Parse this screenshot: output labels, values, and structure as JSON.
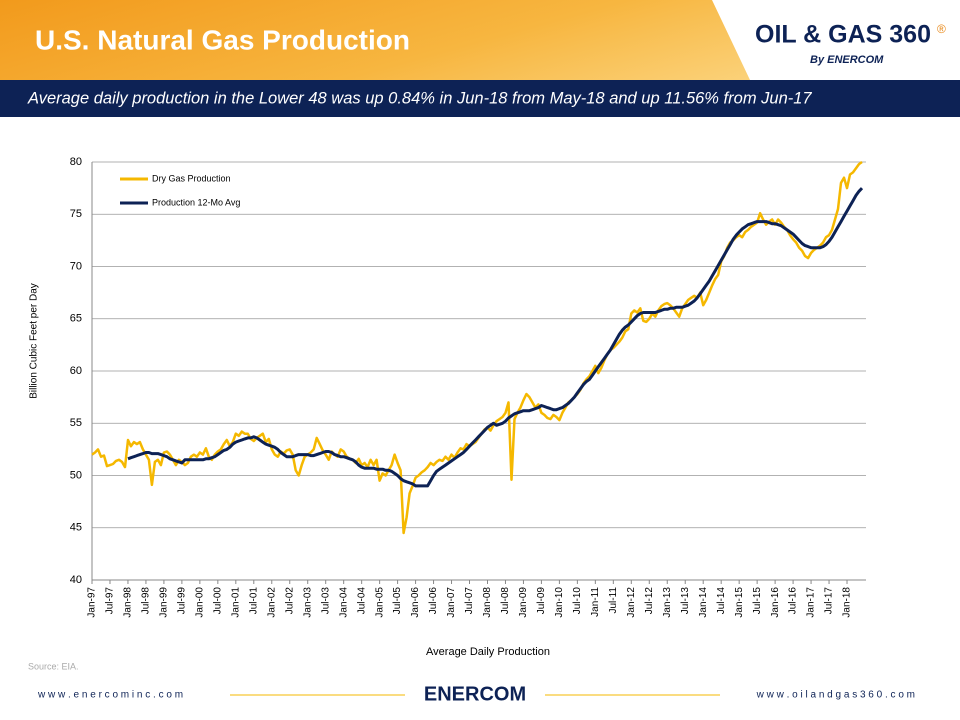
{
  "header": {
    "title": "U.S. Natural Gas Production",
    "logo": "OIL & GAS 360",
    "logo_mark": "®",
    "logo_sub": "By ENERCOM",
    "subtitle": "Average daily production in the Lower 48 was up 0.84% in Jun-18 from May-18 and up 11.56% from Jun-17"
  },
  "chart_data": {
    "type": "line",
    "ylabel": "Billion Cubic Feet per Day",
    "xlabel": "Average Daily Production",
    "ylim": [
      40,
      80
    ],
    "yticks": [
      40,
      45,
      50,
      55,
      60,
      65,
      70,
      75,
      80
    ],
    "grid": true,
    "legend": "upper left",
    "categories": [
      "Jan-97",
      null,
      null,
      null,
      null,
      null,
      "Jul-97",
      null,
      null,
      null,
      null,
      null,
      "Jan-98",
      null,
      null,
      null,
      null,
      null,
      "Jul-98",
      null,
      null,
      null,
      null,
      null,
      "Jan-99",
      null,
      null,
      null,
      null,
      null,
      "Jul-99",
      null,
      null,
      null,
      null,
      null,
      "Jan-00",
      null,
      null,
      null,
      null,
      null,
      "Jul-00",
      null,
      null,
      null,
      null,
      null,
      "Jan-01",
      null,
      null,
      null,
      null,
      null,
      "Jul-01",
      null,
      null,
      null,
      null,
      null,
      "Jan-02",
      null,
      null,
      null,
      null,
      null,
      "Jul-02",
      null,
      null,
      null,
      null,
      null,
      "Jan-03",
      null,
      null,
      null,
      null,
      null,
      "Jul-03",
      null,
      null,
      null,
      null,
      null,
      "Jan-04",
      null,
      null,
      null,
      null,
      null,
      "Jul-04",
      null,
      null,
      null,
      null,
      null,
      "Jan-05",
      null,
      null,
      null,
      null,
      null,
      "Jul-05",
      null,
      null,
      null,
      null,
      null,
      "Jan-06",
      null,
      null,
      null,
      null,
      null,
      "Jul-06",
      null,
      null,
      null,
      null,
      null,
      "Jan-07",
      null,
      null,
      null,
      null,
      null,
      "Jul-07",
      null,
      null,
      null,
      null,
      null,
      "Jan-08",
      null,
      null,
      null,
      null,
      null,
      "Jul-08",
      null,
      null,
      null,
      null,
      null,
      "Jan-09",
      null,
      null,
      null,
      null,
      null,
      "Jul-09",
      null,
      null,
      null,
      null,
      null,
      "Jan-10",
      null,
      null,
      null,
      null,
      null,
      "Jul-10",
      null,
      null,
      null,
      null,
      null,
      "Jan-11",
      null,
      null,
      null,
      null,
      null,
      "Jul-11",
      null,
      null,
      null,
      null,
      null,
      "Jan-12",
      null,
      null,
      null,
      null,
      null,
      "Jul-12",
      null,
      null,
      null,
      null,
      null,
      "Jan-13",
      null,
      null,
      null,
      null,
      null,
      "Jul-13",
      null,
      null,
      null,
      null,
      null,
      "Jan-14",
      null,
      null,
      null,
      null,
      null,
      "Jul-14",
      null,
      null,
      null,
      null,
      null,
      "Jan-15",
      null,
      null,
      null,
      null,
      null,
      "Jul-15",
      null,
      null,
      null,
      null,
      null,
      "Jan-16",
      null,
      null,
      null,
      null,
      null,
      "Jul-16",
      null,
      null,
      null,
      null,
      null,
      "Jan-17",
      null,
      null,
      null,
      null,
      null,
      "Jul-17",
      null,
      null,
      null,
      null,
      null,
      "Jan-18",
      null,
      null,
      null,
      null,
      null
    ],
    "series": [
      {
        "name": "Dry Gas Production",
        "color": "#f5b800",
        "values": [
          52.0,
          52.2,
          52.5,
          51.8,
          51.9,
          50.9,
          51.0,
          51.1,
          51.4,
          51.5,
          51.3,
          50.8,
          53.4,
          52.8,
          53.2,
          53.0,
          53.2,
          52.5,
          52.0,
          51.5,
          49.1,
          51.3,
          51.5,
          51.0,
          52.2,
          52.3,
          52.0,
          51.5,
          51.0,
          51.5,
          51.3,
          51.0,
          51.2,
          51.8,
          52.0,
          51.8,
          52.2,
          52.0,
          52.6,
          51.8,
          51.5,
          52.0,
          52.3,
          52.5,
          53.0,
          53.4,
          52.8,
          53.2,
          54.0,
          53.8,
          54.2,
          54.0,
          54.0,
          53.5,
          53.3,
          53.6,
          53.8,
          54.0,
          53.2,
          53.5,
          52.5,
          52.0,
          51.8,
          52.3,
          52.1,
          52.4,
          52.5,
          52.0,
          50.5,
          50.0,
          51.0,
          51.8,
          52.0,
          52.2,
          52.5,
          53.6,
          53.0,
          52.4,
          52.0,
          51.5,
          52.3,
          52.0,
          51.8,
          52.5,
          52.3,
          51.8,
          51.6,
          51.5,
          51.2,
          51.6,
          51.0,
          51.2,
          50.8,
          51.5,
          51.0,
          51.5,
          49.5,
          50.2,
          50.0,
          50.5,
          51.0,
          52.0,
          51.2,
          50.5,
          44.5,
          46.0,
          48.3,
          49.0,
          49.8,
          50.0,
          50.3,
          50.5,
          50.8,
          51.2,
          51.0,
          51.3,
          51.5,
          51.4,
          51.8,
          51.5,
          52.0,
          51.7,
          52.2,
          52.6,
          52.5,
          53.0,
          52.8,
          53.0,
          53.2,
          53.6,
          54.0,
          54.4,
          54.6,
          54.3,
          54.8,
          55.2,
          55.4,
          55.6,
          56.0,
          57.0,
          49.6,
          55.4,
          56.0,
          56.5,
          57.2,
          57.8,
          57.5,
          57.0,
          56.5,
          56.8,
          56.0,
          55.8,
          55.5,
          55.4,
          55.8,
          55.6,
          55.3,
          56.0,
          56.5,
          57.0,
          57.2,
          57.5,
          57.8,
          58.2,
          58.8,
          59.2,
          59.5,
          60.0,
          60.5,
          59.8,
          60.3,
          61.0,
          61.6,
          62.0,
          62.2,
          62.5,
          62.8,
          63.2,
          63.8,
          64.0,
          65.5,
          65.8,
          65.6,
          66.0,
          64.8,
          64.7,
          65.0,
          65.5,
          65.2,
          65.8,
          66.2,
          66.4,
          66.5,
          66.3,
          66.0,
          65.6,
          65.2,
          66.0,
          66.4,
          66.8,
          67.0,
          67.2,
          67.0,
          67.5,
          66.3,
          66.8,
          67.5,
          68.2,
          68.8,
          69.2,
          70.5,
          71.0,
          71.8,
          72.3,
          72.5,
          72.8,
          73.0,
          72.8,
          73.3,
          73.5,
          73.8,
          74.0,
          74.2,
          75.1,
          74.5,
          74.0,
          74.3,
          74.5,
          74.0,
          74.5,
          74.2,
          73.8,
          73.5,
          73.0,
          72.6,
          72.3,
          71.8,
          71.5,
          71.0,
          70.8,
          71.3,
          71.6,
          71.8,
          72.0,
          72.3,
          72.8,
          73.0,
          73.5,
          74.5,
          75.5,
          78.0,
          78.5,
          77.5,
          78.8,
          79.0,
          79.4,
          79.8,
          80.0
        ]
      },
      {
        "name": "Production 12-Mo Avg",
        "color": "#0d2255",
        "values": [
          null,
          null,
          null,
          null,
          null,
          null,
          null,
          null,
          null,
          null,
          null,
          null,
          51.6,
          51.7,
          51.8,
          51.9,
          52.0,
          52.1,
          52.2,
          52.2,
          52.1,
          52.1,
          52.1,
          52.0,
          51.9,
          51.8,
          51.6,
          51.5,
          51.4,
          51.3,
          51.2,
          51.5,
          51.5,
          51.5,
          51.5,
          51.5,
          51.5,
          51.5,
          51.6,
          51.6,
          51.7,
          51.8,
          52.0,
          52.2,
          52.4,
          52.5,
          52.7,
          53.0,
          53.2,
          53.3,
          53.4,
          53.5,
          53.6,
          53.6,
          53.7,
          53.6,
          53.4,
          53.2,
          53.0,
          52.9,
          52.8,
          52.7,
          52.5,
          52.2,
          52.0,
          51.8,
          51.8,
          51.8,
          51.9,
          52.0,
          52.0,
          52.0,
          52.0,
          51.9,
          51.9,
          52.0,
          52.1,
          52.2,
          52.3,
          52.3,
          52.2,
          52.0,
          51.9,
          51.8,
          51.8,
          51.7,
          51.6,
          51.5,
          51.3,
          51.0,
          50.8,
          50.7,
          50.7,
          50.7,
          50.7,
          50.6,
          50.6,
          50.6,
          50.5,
          50.5,
          50.4,
          50.2,
          50.0,
          49.7,
          49.5,
          49.4,
          49.3,
          49.2,
          49.0,
          49.0,
          49.0,
          49.0,
          49.0,
          49.5,
          50.0,
          50.4,
          50.6,
          50.8,
          51.0,
          51.2,
          51.4,
          51.6,
          51.8,
          52.0,
          52.2,
          52.5,
          52.8,
          53.1,
          53.4,
          53.7,
          54.0,
          54.3,
          54.6,
          54.8,
          55.0,
          54.8,
          54.9,
          55.0,
          55.2,
          55.5,
          55.7,
          55.9,
          56.0,
          56.1,
          56.2,
          56.2,
          56.2,
          56.3,
          56.4,
          56.5,
          56.7,
          56.6,
          56.5,
          56.4,
          56.3,
          56.3,
          56.4,
          56.5,
          56.7,
          56.9,
          57.2,
          57.5,
          57.9,
          58.3,
          58.7,
          59.0,
          59.2,
          59.6,
          60.0,
          60.4,
          60.8,
          61.2,
          61.6,
          62.0,
          62.5,
          63.0,
          63.5,
          63.9,
          64.2,
          64.4,
          64.7,
          65.0,
          65.3,
          65.5,
          65.6,
          65.6,
          65.6,
          65.6,
          65.6,
          65.7,
          65.8,
          65.9,
          65.9,
          66.0,
          66.0,
          66.1,
          66.1,
          66.1,
          66.2,
          66.3,
          66.5,
          66.7,
          67.0,
          67.4,
          67.8,
          68.2,
          68.6,
          69.1,
          69.6,
          70.1,
          70.6,
          71.1,
          71.6,
          72.1,
          72.6,
          73.0,
          73.3,
          73.6,
          73.8,
          74.0,
          74.1,
          74.2,
          74.3,
          74.3,
          74.3,
          74.3,
          74.2,
          74.1,
          74.1,
          74.0,
          73.9,
          73.7,
          73.5,
          73.3,
          73.1,
          72.8,
          72.5,
          72.2,
          72.0,
          71.9,
          71.8,
          71.8,
          71.8,
          71.8,
          71.9,
          72.1,
          72.4,
          72.8,
          73.3,
          73.8,
          74.3,
          74.8,
          75.3,
          75.8,
          76.3,
          76.8,
          77.2,
          77.5
        ]
      }
    ]
  },
  "footer": {
    "source": "Source: EIA.",
    "left_url": "w w w . e n e r c o m i n c . c o m",
    "brand": "ENERCOM",
    "right_url": "w w w . o i l a n d g a s 3 6 0 . c o m"
  }
}
